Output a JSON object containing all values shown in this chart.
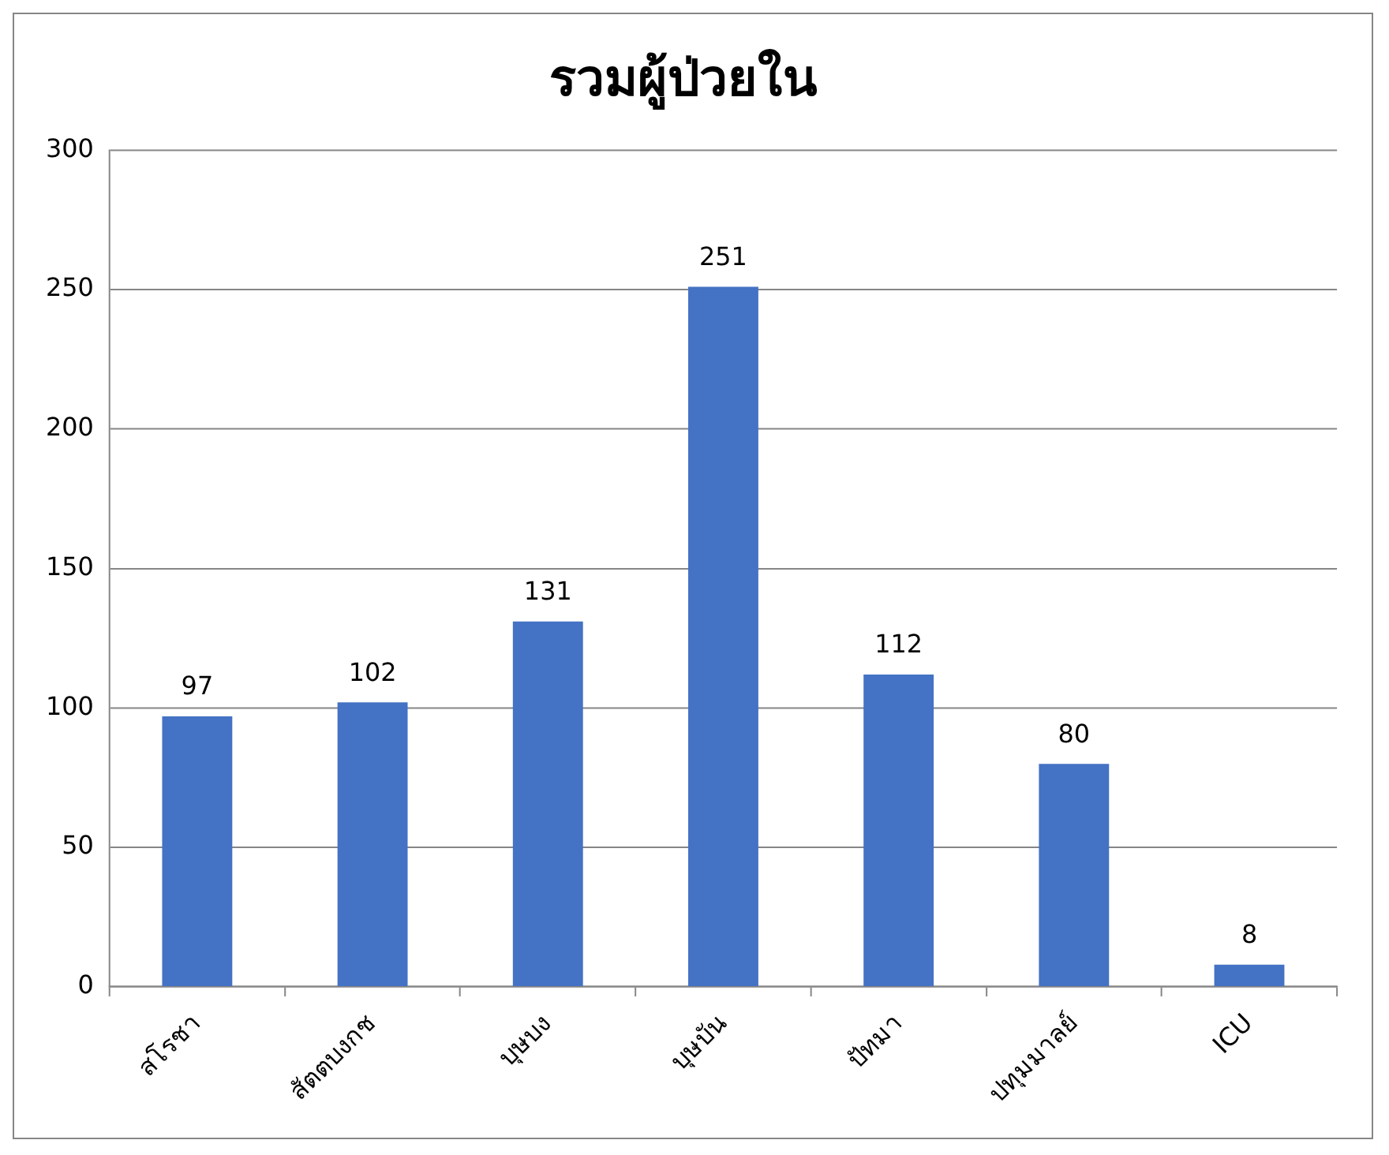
{
  "chart_data": {
    "type": "bar",
    "title": "รวมผู้ป่วยใน",
    "categories": [
      "สโรชา",
      "สัตตบงกช",
      "บุษบง",
      "บุษบัน",
      "ปัทมา",
      "ปทุมมาลย์",
      "ICU"
    ],
    "values": [
      97,
      102,
      131,
      251,
      112,
      80,
      8
    ],
    "color": "#4472c4",
    "ylim": [
      0,
      300
    ],
    "yticks": [
      0,
      50,
      100,
      150,
      200,
      250,
      300
    ],
    "grid": "y",
    "data_labels": true
  }
}
